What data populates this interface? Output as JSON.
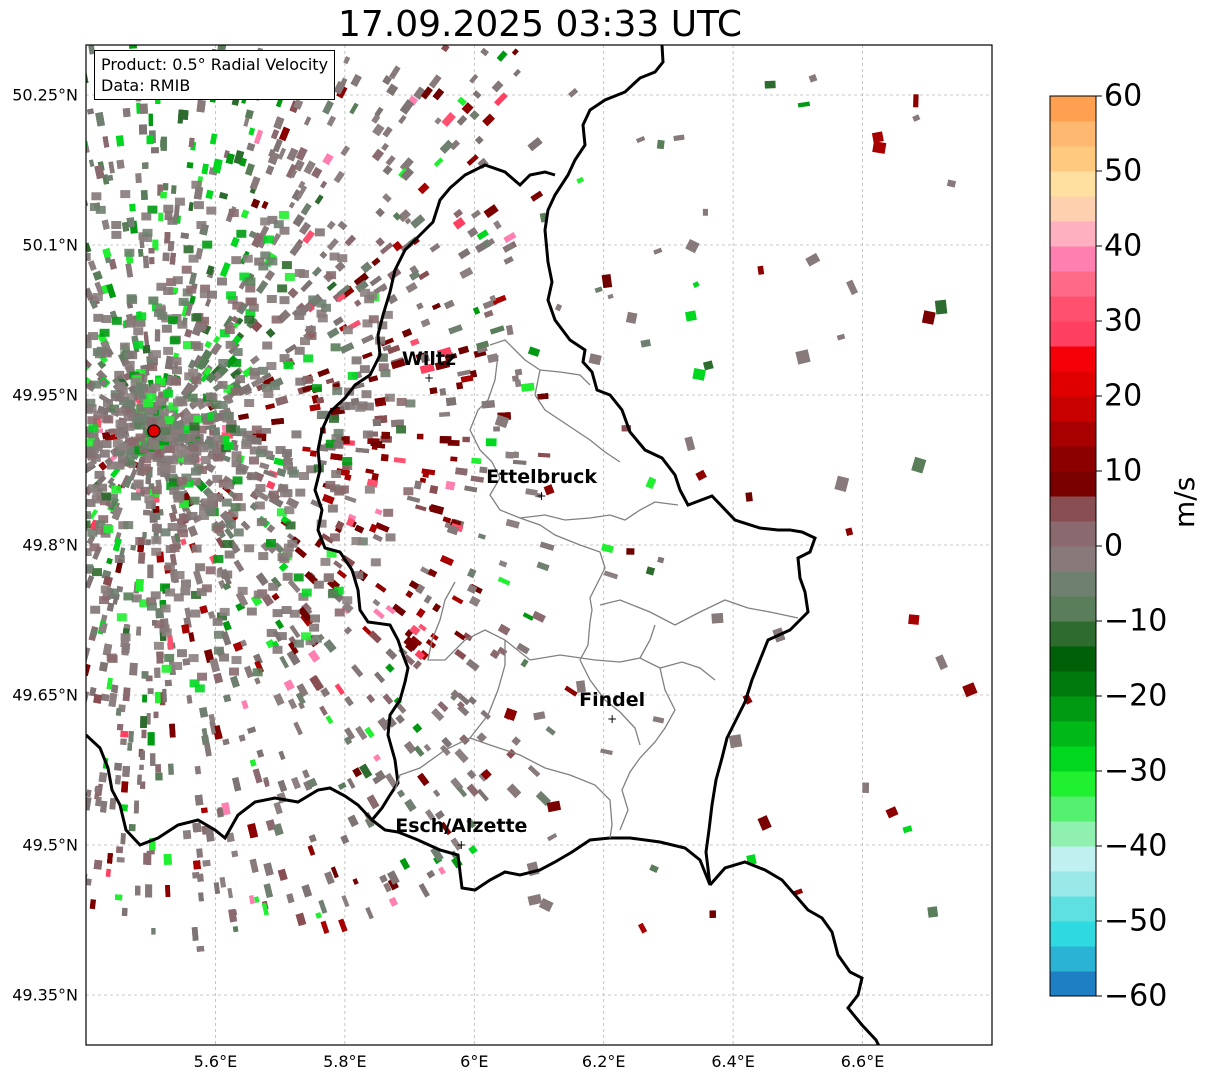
{
  "title": "17.09.2025 03:33 UTC",
  "product_box": {
    "product": "Product: 0.5° Radial Velocity",
    "data": "Data: RMIB"
  },
  "map": {
    "extent": {
      "lon": [
        5.4,
        6.8
      ],
      "lat": [
        49.3,
        50.3
      ]
    },
    "lat_ticks": [
      "50.25°N",
      "50.1°N",
      "49.95°N",
      "49.8°N",
      "49.65°N",
      "49.5°N",
      "49.35°N"
    ],
    "lat_values": [
      50.25,
      50.1,
      49.95,
      49.8,
      49.65,
      49.5,
      49.35
    ],
    "lon_ticks": [
      "5.6°E",
      "5.8°E",
      "6°E",
      "6.2°E",
      "6.4°E",
      "6.6°E"
    ],
    "lon_values": [
      5.6,
      5.8,
      6.0,
      6.2,
      6.4,
      6.6
    ],
    "grid": true,
    "radar_site": {
      "lon": 5.505,
      "lat": 49.914
    },
    "cities": [
      {
        "name": "Wiltz",
        "lon": 5.93,
        "lat": 49.967
      },
      {
        "name": "Ettelbruck",
        "lon": 6.104,
        "lat": 49.849
      },
      {
        "name": "Findel",
        "lon": 6.213,
        "lat": 49.626
      },
      {
        "name": "Esch/Alzette",
        "lon": 5.98,
        "lat": 49.5
      }
    ]
  },
  "colorbar": {
    "unit": "m/s",
    "ticks": [
      "60",
      "50",
      "40",
      "30",
      "20",
      "10",
      "0",
      "−10",
      "−20",
      "−30",
      "−40",
      "−50",
      "−60"
    ],
    "min": -60,
    "max": 60,
    "colors": [
      "#1f7fc4",
      "#2bb3d6",
      "#2fd9e0",
      "#5fe0e0",
      "#9ae8e8",
      "#c0f0f0",
      "#90f0b0",
      "#55f070",
      "#20f030",
      "#00d820",
      "#00b818",
      "#009a12",
      "#007a0c",
      "#006008",
      "#2e6b2e",
      "#5a7e5a",
      "#6f8070",
      "#887a7a",
      "#8a6a6e",
      "#884e52",
      "#7a0000",
      "#8c0000",
      "#a80000",
      "#c80000",
      "#e00000",
      "#f50008",
      "#ff4060",
      "#ff5070",
      "#ff6a88",
      "#ff80b0",
      "#ffb0c0",
      "#ffd0b0",
      "#ffe0a0",
      "#ffca80",
      "#ffb870",
      "#ffa050"
    ]
  }
}
